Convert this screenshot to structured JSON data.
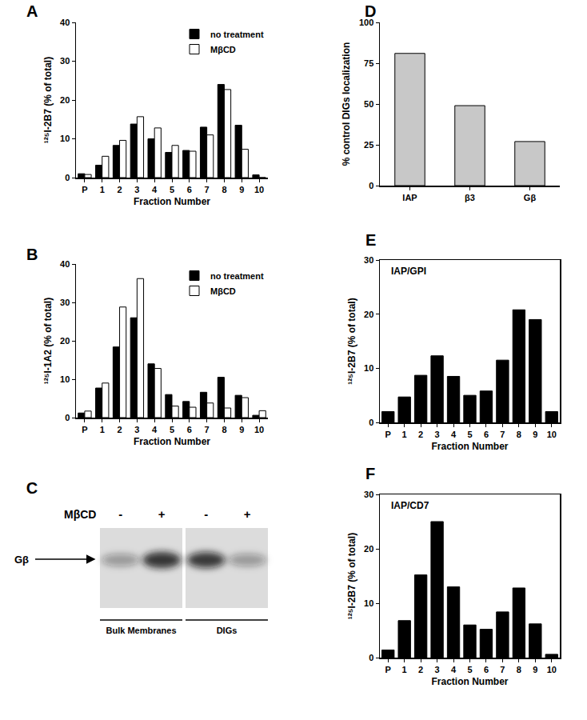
{
  "chart_data": [
    {
      "type": "bar",
      "title": "A",
      "categories": [
        "P",
        "1",
        "2",
        "3",
        "4",
        "5",
        "6",
        "7",
        "8",
        "9",
        "10"
      ],
      "series": [
        {
          "name": "no treatment",
          "color": "#000000",
          "values": [
            1,
            3.2,
            8.3,
            13.8,
            10,
            6.5,
            7,
            13,
            24,
            13.5,
            0.7
          ]
        },
        {
          "name": "MβCD",
          "color": "#ffffff",
          "values": [
            0.8,
            5.5,
            9.6,
            15.7,
            12.8,
            8.3,
            6.8,
            11,
            22.7,
            7.3,
            0
          ]
        }
      ],
      "xlabel": "Fraction Number",
      "ylabel": "¹²⁵I-2B7 (% of total)",
      "ylim": [
        0,
        40
      ],
      "yticks": [
        0,
        10,
        20,
        30,
        40
      ],
      "legend": "upper right"
    },
    {
      "type": "bar",
      "title": "B",
      "categories": [
        "P",
        "1",
        "2",
        "3",
        "4",
        "5",
        "6",
        "7",
        "8",
        "9",
        "10"
      ],
      "series": [
        {
          "name": "no treatment",
          "color": "#000000",
          "values": [
            1.2,
            7.7,
            18.4,
            26,
            14,
            6,
            4.2,
            6.6,
            10.5,
            5.8,
            0.6
          ]
        },
        {
          "name": "MβCD",
          "color": "#ffffff",
          "values": [
            1.7,
            9,
            28.8,
            36.2,
            12.8,
            3,
            2.7,
            3.8,
            2.5,
            5.2,
            1.8
          ]
        }
      ],
      "xlabel": "Fraction Number",
      "ylabel": "¹²⁵I-1A2 (% of total)",
      "ylim": [
        0,
        40
      ],
      "yticks": [
        0,
        10,
        20,
        30,
        40
      ],
      "legend": "upper right"
    },
    {
      "type": "bar",
      "title": "D",
      "categories": [
        "IAP",
        "β3",
        "Gβ"
      ],
      "values": [
        81,
        49,
        27
      ],
      "color": "#c8c8c8",
      "ylabel": "% control DIGs localization",
      "ylim": [
        0,
        100
      ],
      "yticks": [
        0,
        25,
        50,
        75,
        100
      ]
    },
    {
      "type": "bar",
      "title": "E",
      "annotations": [
        "IAP/GPI"
      ],
      "categories": [
        "P",
        "1",
        "2",
        "3",
        "4",
        "5",
        "6",
        "7",
        "8",
        "9",
        "10"
      ],
      "values": [
        2,
        4.7,
        8.7,
        12.3,
        8.5,
        5,
        5.8,
        11.5,
        20.8,
        19,
        2
      ],
      "color": "#000000",
      "xlabel": "Fraction Number",
      "ylabel": "¹²⁵I-2B7 (% of total)",
      "ylim": [
        0,
        30
      ],
      "yticks": [
        0,
        10,
        20,
        30
      ]
    },
    {
      "type": "bar",
      "title": "F",
      "annotations": [
        "IAP/CD7"
      ],
      "categories": [
        "P",
        "1",
        "2",
        "3",
        "4",
        "5",
        "6",
        "7",
        "8",
        "9",
        "10"
      ],
      "values": [
        1.4,
        6.8,
        15.2,
        25,
        13,
        6,
        5.2,
        8.4,
        12.8,
        6.2,
        0.6
      ],
      "color": "#000000",
      "xlabel": "Fraction Number",
      "ylabel": "¹²⁵I-2B7 (% of total)",
      "ylim": [
        0,
        30
      ],
      "yticks": [
        0,
        10,
        20,
        30
      ]
    }
  ],
  "blot": {
    "title": "C",
    "treatment_label": "MβCD",
    "marker_label": "Gβ",
    "groups": [
      {
        "name": "Bulk Membranes",
        "lanes": [
          "-",
          "+"
        ]
      },
      {
        "name": "DIGs",
        "lanes": [
          "-",
          "+"
        ]
      }
    ]
  }
}
